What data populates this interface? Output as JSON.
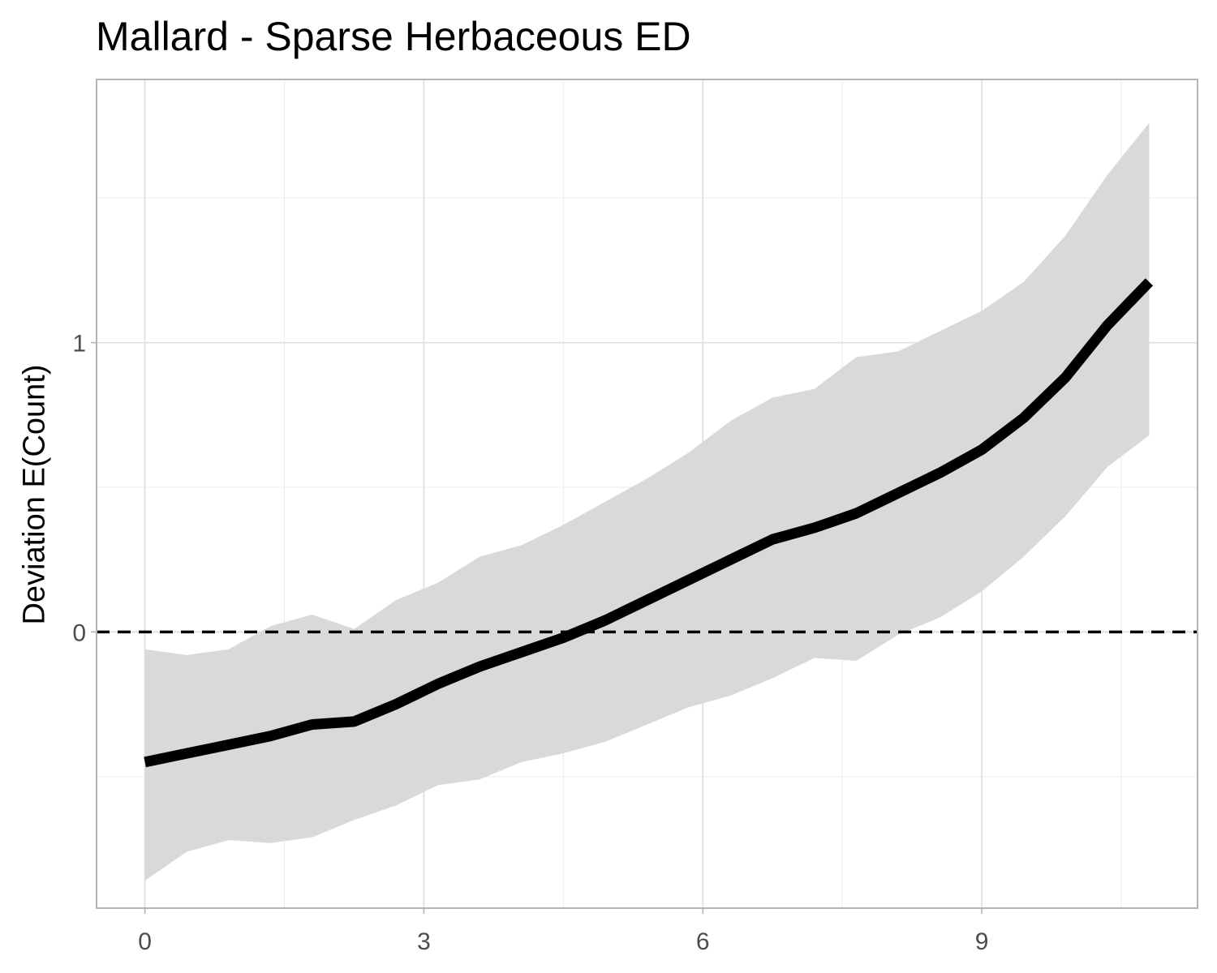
{
  "chart_data": {
    "type": "line",
    "title": "Mallard - Sparse Herbaceous ED",
    "xlabel": "",
    "ylabel": "Deviation E(Count)",
    "xlim": [
      -0.52,
      11.32
    ],
    "ylim": [
      -0.955,
      1.91
    ],
    "x_ticks": [
      0,
      3,
      6,
      9
    ],
    "x_tick_labels": [
      "0",
      "3",
      "6",
      "9"
    ],
    "x_minor_ticks": [
      1.5,
      4.5,
      7.5,
      10.5
    ],
    "y_ticks": [
      0,
      1
    ],
    "y_tick_labels": [
      "0",
      "1"
    ],
    "y_minor_ticks": [
      -0.5,
      0.5,
      1.5
    ],
    "grid": true,
    "reference_line": {
      "y": 0,
      "style": "dashed",
      "color": "#000000"
    },
    "series": [
      {
        "line_color": "#000000",
        "band_color": "#d9d9d9",
        "x": [
          0,
          0.45,
          0.9,
          1.35,
          1.8,
          2.25,
          2.7,
          3.15,
          3.6,
          4.05,
          4.5,
          4.95,
          5.4,
          5.85,
          6.3,
          6.75,
          7.2,
          7.65,
          8.1,
          8.55,
          9.0,
          9.45,
          9.9,
          10.35,
          10.8
        ],
        "y": [
          -0.45,
          -0.42,
          -0.39,
          -0.36,
          -0.32,
          -0.31,
          -0.25,
          -0.18,
          -0.12,
          -0.07,
          -0.02,
          0.04,
          0.11,
          0.18,
          0.25,
          0.32,
          0.36,
          0.41,
          0.48,
          0.55,
          0.63,
          0.74,
          0.88,
          1.06,
          1.21
        ],
        "upper": [
          -0.06,
          -0.08,
          -0.06,
          0.02,
          0.06,
          0.01,
          0.11,
          0.17,
          0.26,
          0.3,
          0.37,
          0.45,
          0.53,
          0.62,
          0.73,
          0.81,
          0.84,
          0.95,
          0.97,
          1.04,
          1.11,
          1.21,
          1.37,
          1.58,
          1.76
        ],
        "lower": [
          -0.86,
          -0.76,
          -0.72,
          -0.73,
          -0.71,
          -0.65,
          -0.6,
          -0.53,
          -0.51,
          -0.45,
          -0.42,
          -0.38,
          -0.32,
          -0.26,
          -0.22,
          -0.16,
          -0.09,
          -0.1,
          -0.01,
          0.05,
          0.14,
          0.26,
          0.4,
          0.57,
          0.68
        ]
      }
    ]
  }
}
